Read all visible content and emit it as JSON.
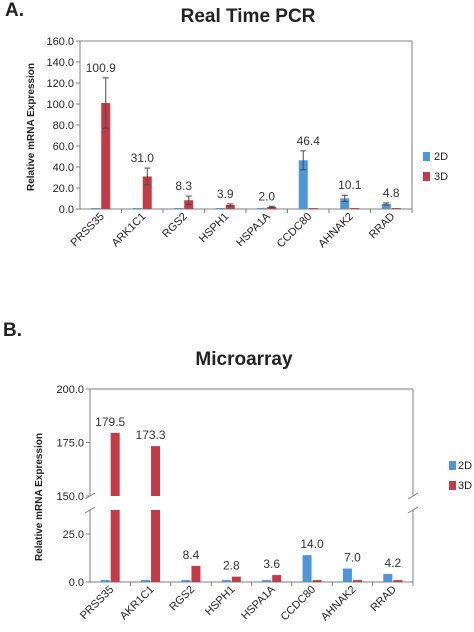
{
  "colors": {
    "series_2d": "#4e95d9",
    "series_3d": "#c23b47",
    "plot_bg": "#ffffff",
    "axis": "#7f7f7f",
    "error_bar": "#4a4a4a"
  },
  "chart_data": [
    {
      "panel_label": "A.",
      "type": "bar",
      "title": "Real Time PCR",
      "ylabel": "Relative mRNA Expression",
      "xlabel": "",
      "ylim": [
        0,
        160
      ],
      "yticks": [
        "0.0",
        "20.0",
        "40.0",
        "60.0",
        "80.0",
        "100.0",
        "120.0",
        "140.0",
        "160.0"
      ],
      "categories": [
        "PRSS35",
        "ARK1C1",
        "RGS2",
        "HSPH1",
        "HSPA1A",
        "CCDC80",
        "AHNAK2",
        "RRAD"
      ],
      "series": [
        {
          "name": "2D",
          "values": [
            0.9,
            0.9,
            0.9,
            0.9,
            0.9,
            46.4,
            10.1,
            4.8
          ],
          "errors": [
            0,
            0,
            0,
            0,
            0,
            9,
            3,
            1
          ]
        },
        {
          "name": "3D",
          "values": [
            100.9,
            31.0,
            8.3,
            3.9,
            2.0,
            0.9,
            0.9,
            0.9
          ],
          "errors": [
            24,
            8,
            4,
            1,
            0.6,
            0,
            0,
            0
          ]
        }
      ],
      "data_labels": [
        "100.9",
        "31.0",
        "8.3",
        "3.9",
        "2.0",
        "46.4",
        "10.1",
        "4.8"
      ],
      "legend": {
        "placement": "right",
        "entries": [
          "2D",
          "3D"
        ]
      },
      "grid": false
    },
    {
      "panel_label": "B.",
      "type": "bar",
      "title": "Microarray",
      "ylabel": "Relative mRNA Expression",
      "xlabel": "",
      "ylim": [
        0,
        200
      ],
      "axis_break": [
        37.5,
        150
      ],
      "yticks": [
        "0.0",
        "25.0",
        "150.0",
        "175.0",
        "200.0"
      ],
      "categories": [
        "PRSS35",
        "AKR1C1",
        "RGS2",
        "HSPH1",
        "HSPA1A",
        "CCDC80",
        "AHNAK2",
        "RRAD"
      ],
      "series": [
        {
          "name": "2D",
          "values": [
            1.0,
            1.0,
            1.0,
            1.0,
            1.0,
            14.0,
            7.0,
            4.2
          ],
          "errors": [
            0,
            0,
            0,
            0,
            0,
            0,
            0,
            0
          ]
        },
        {
          "name": "3D",
          "values": [
            179.5,
            173.3,
            8.4,
            2.8,
            3.6,
            1.0,
            1.0,
            1.0
          ],
          "errors": [
            0,
            0,
            0,
            0,
            0,
            0,
            0,
            0
          ]
        }
      ],
      "data_labels": [
        "179.5",
        "173.3",
        "8.4",
        "2.8",
        "3.6",
        "14.0",
        "7.0",
        "4.2"
      ],
      "legend": {
        "placement": "right",
        "entries": [
          "2D",
          "3D"
        ]
      },
      "grid": false
    }
  ]
}
